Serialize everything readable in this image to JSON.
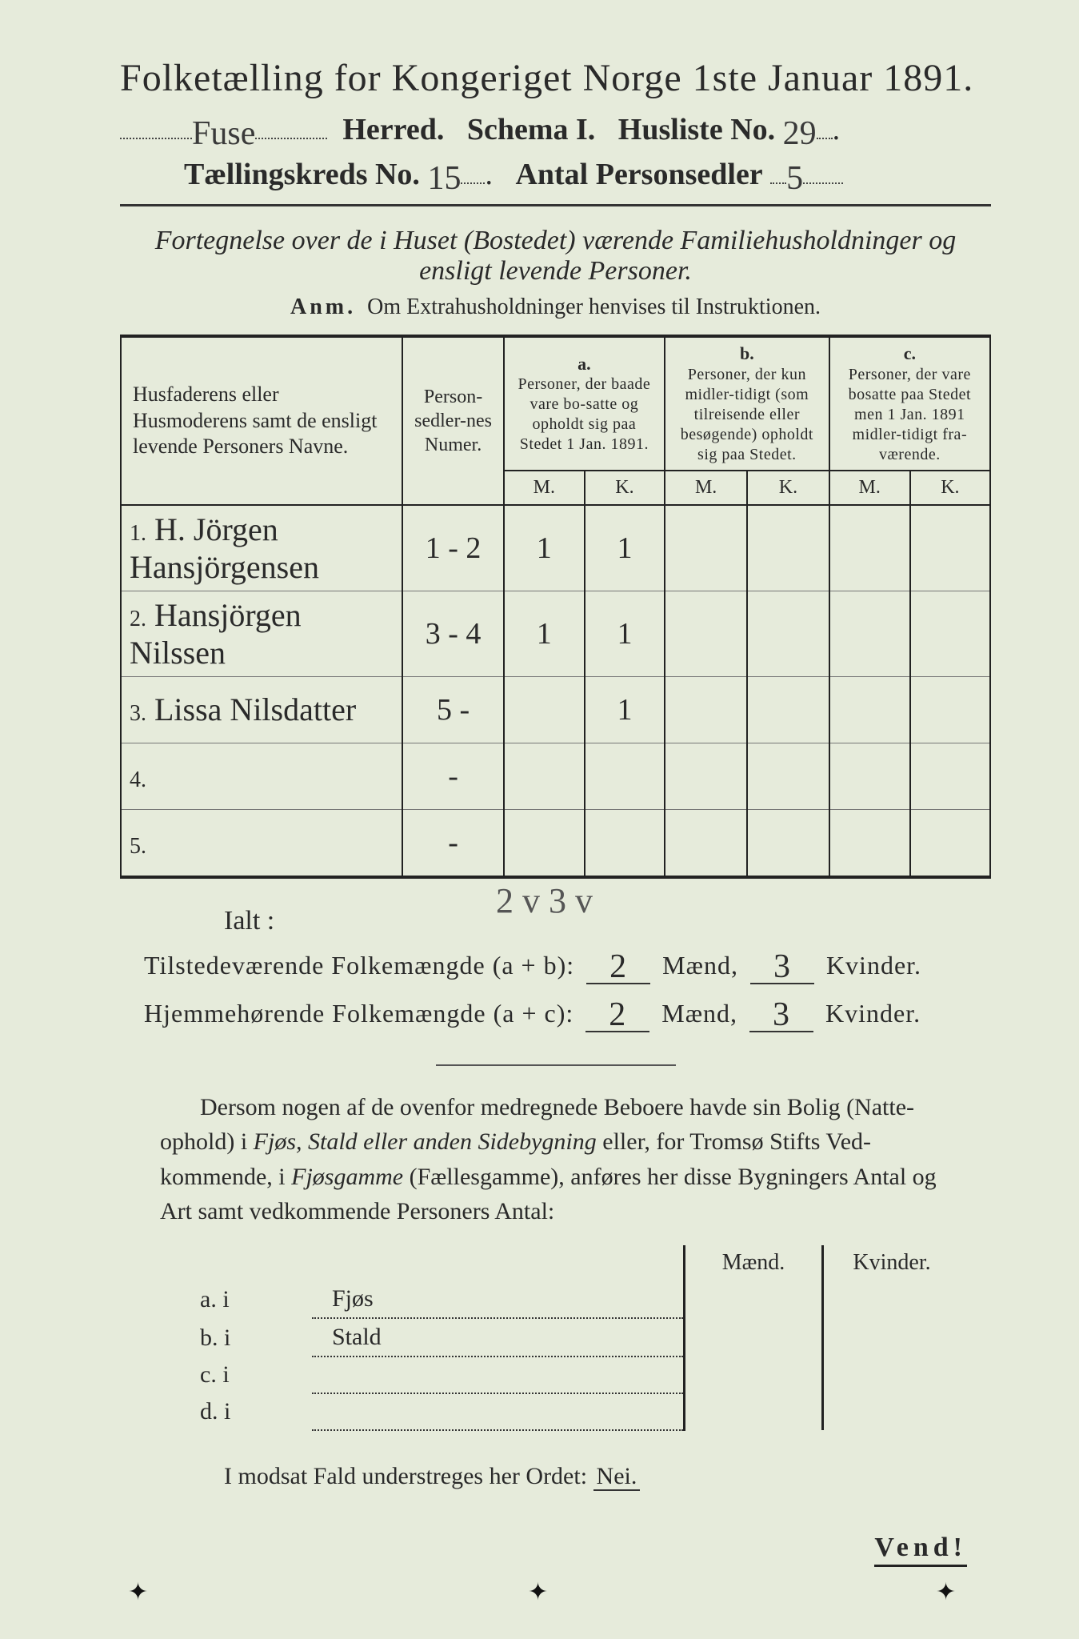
{
  "title_line": "Folketælling for Kongeriget Norge 1ste Januar 1891.",
  "herred_value": "Fuse",
  "herred_label": "Herred.",
  "schema_label": "Schema I.",
  "husliste_label": "Husliste No.",
  "husliste_value": "29",
  "kreds_label": "Tællingskreds No.",
  "kreds_value": "15",
  "personsedler_label": "Antal Personsedler",
  "personsedler_value": "5",
  "subtitle": "Fortegnelse over de i Huset (Bostedet) værende Familiehusholdninger og ensligt levende Personer.",
  "anm": "Anm.  Om Extrahusholdninger henvises til Instruktionen.",
  "table": {
    "name_header": "Husfaderens eller Husmoderens samt de ensligt levende Personers Navne.",
    "num_header": "Person-sedler-nes Numer.",
    "col_a_letter": "a.",
    "col_a_text": "Personer, der baade vare bo-satte og opholdt sig paa Stedet 1 Jan. 1891.",
    "col_b_letter": "b.",
    "col_b_text": "Personer, der kun midler-tidigt (som tilreisende eller besøgende) opholdt sig paa Stedet.",
    "col_c_letter": "c.",
    "col_c_text": "Personer, der vare bosatte paa Stedet men 1 Jan. 1891 midler-tidigt fra-værende.",
    "mk_m": "M.",
    "mk_k": "K.",
    "rows": [
      {
        "idx": "1.",
        "name": "H. Jörgen Hansjörgensen",
        "num": "1 - 2",
        "a_m": "1",
        "a_k": "1",
        "b_m": "",
        "b_k": "",
        "c_m": "",
        "c_k": ""
      },
      {
        "idx": "2.",
        "name": "Hansjörgen Nilssen",
        "num": "3 - 4",
        "a_m": "1",
        "a_k": "1",
        "b_m": "",
        "b_k": "",
        "c_m": "",
        "c_k": ""
      },
      {
        "idx": "3.",
        "name": "Lissa Nilsdatter",
        "num": "5 -",
        "a_m": "",
        "a_k": "1",
        "b_m": "",
        "b_k": "",
        "c_m": "",
        "c_k": ""
      },
      {
        "idx": "4.",
        "name": "",
        "num": "-",
        "a_m": "",
        "a_k": "",
        "b_m": "",
        "b_k": "",
        "c_m": "",
        "c_k": ""
      },
      {
        "idx": "5.",
        "name": "",
        "num": "-",
        "a_m": "",
        "a_k": "",
        "b_m": "",
        "b_k": "",
        "c_m": "",
        "c_k": ""
      }
    ]
  },
  "ialt_label": "Ialt :",
  "ialt_scribble": "2 v 3 v",
  "tot1_label": "Tilstedeværende Folkemængde (a + b):",
  "tot2_label": "Hjemmehørende Folkemængde (a + c):",
  "maend_label": "Mænd,",
  "kvinder_label": "Kvinder.",
  "tot1_m": "2",
  "tot1_k": "3",
  "tot2_m": "2",
  "tot2_k": "3",
  "para_text": "Dersom nogen af de ovenfor medregnede Beboere havde sin Bolig (Natte-ophold) i Fjøs, Stald eller anden Sidebygning eller, for Tromsø Stifts Ved-kommende, i Fjøsgamme (Fællesgamme), anføres her disse Bygningers Antal og Art samt vedkommende Personers Antal:",
  "byg": {
    "h_m": "Mænd.",
    "h_k": "Kvinder.",
    "rows": [
      {
        "lab": "a.  i",
        "name": "Fjøs"
      },
      {
        "lab": "b.  i",
        "name": "Stald"
      },
      {
        "lab": "c.  i",
        "name": ""
      },
      {
        "lab": "d.  i",
        "name": ""
      }
    ]
  },
  "modsat_text": "I modsat Fald understreges her Ordet:",
  "nei": "Nei.",
  "vend": "Vend!",
  "colors": {
    "paper": "#e6ebdb",
    "ink": "#2a2a2a",
    "rule": "#222222",
    "faint": "#555555"
  }
}
